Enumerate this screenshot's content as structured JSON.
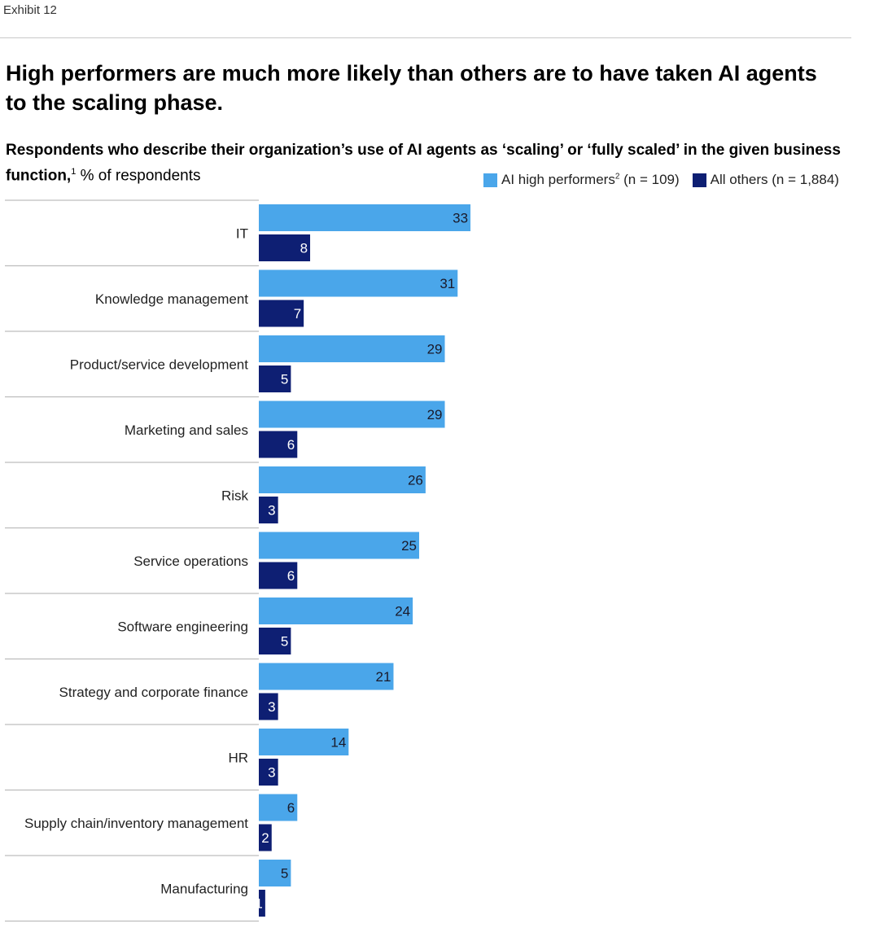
{
  "exhibit_label": "Exhibit 12",
  "title": "High performers are much more likely than others are to have taken AI agents to the scaling phase.",
  "subtitle_bold": "Respondents who describe their organization’s use of AI agents as ‘scaling’ or ‘fully scaled’ in the given business function,",
  "subtitle_footnote": "1",
  "subtitle_unit": " % of respondents",
  "chart_data": {
    "type": "bar",
    "orientation": "horizontal",
    "categories": [
      "IT",
      "Knowledge management",
      "Product/service development",
      "Marketing and sales",
      "Risk",
      "Service operations",
      "Software engineering",
      "Strategy and corporate finance",
      "HR",
      "Supply chain/inventory management",
      "Manufacturing"
    ],
    "series": [
      {
        "name": "AI high performers",
        "footnote": "2",
        "n_label": "(n = 109)",
        "color": "#4aa6ea",
        "values": [
          33,
          31,
          29,
          29,
          26,
          25,
          24,
          21,
          14,
          6,
          5
        ]
      },
      {
        "name": "All others",
        "n_label": "(n = 1,884)",
        "color": "#0e1f73",
        "values": [
          8,
          7,
          5,
          6,
          3,
          6,
          5,
          3,
          3,
          2,
          1
        ]
      }
    ],
    "legend_position": "top-right",
    "grid": false
  }
}
